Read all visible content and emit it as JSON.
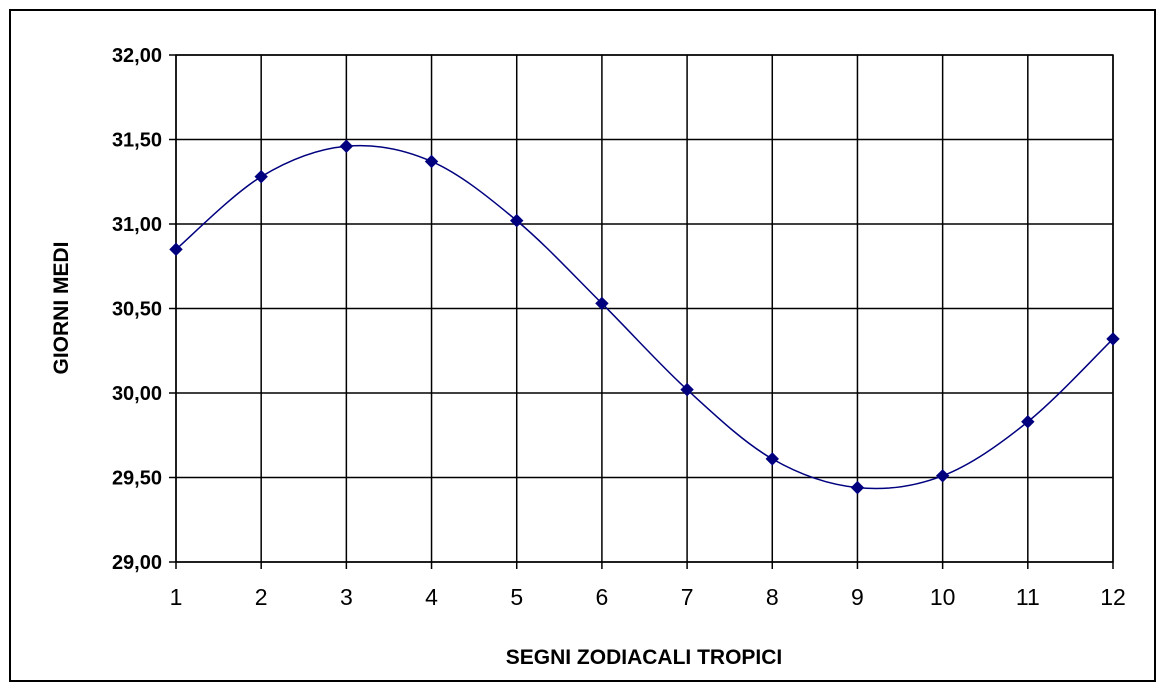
{
  "chart_data": {
    "type": "line",
    "x": [
      1,
      2,
      3,
      4,
      5,
      6,
      7,
      8,
      9,
      10,
      11,
      12
    ],
    "series": [
      {
        "values": [
          30.85,
          31.28,
          31.46,
          31.37,
          31.02,
          30.53,
          30.02,
          29.61,
          29.44,
          29.51,
          29.83,
          30.32
        ],
        "color": "#00007f",
        "marker": "diamond",
        "smooth": true
      }
    ],
    "xlabel": "SEGNI ZODIACALI TROPICI",
    "ylabel": "GIORNI MEDI",
    "xlim": [
      1,
      12
    ],
    "ylim": [
      29.0,
      32.0
    ],
    "y_step": 0.5,
    "x_ticks": [
      "1",
      "2",
      "3",
      "4",
      "5",
      "6",
      "7",
      "8",
      "9",
      "10",
      "11",
      "12"
    ],
    "y_ticks": [
      "29,00",
      "29,50",
      "30,00",
      "30,50",
      "31,00",
      "31,50",
      "32,00"
    ],
    "grid": true,
    "legend": "none"
  }
}
